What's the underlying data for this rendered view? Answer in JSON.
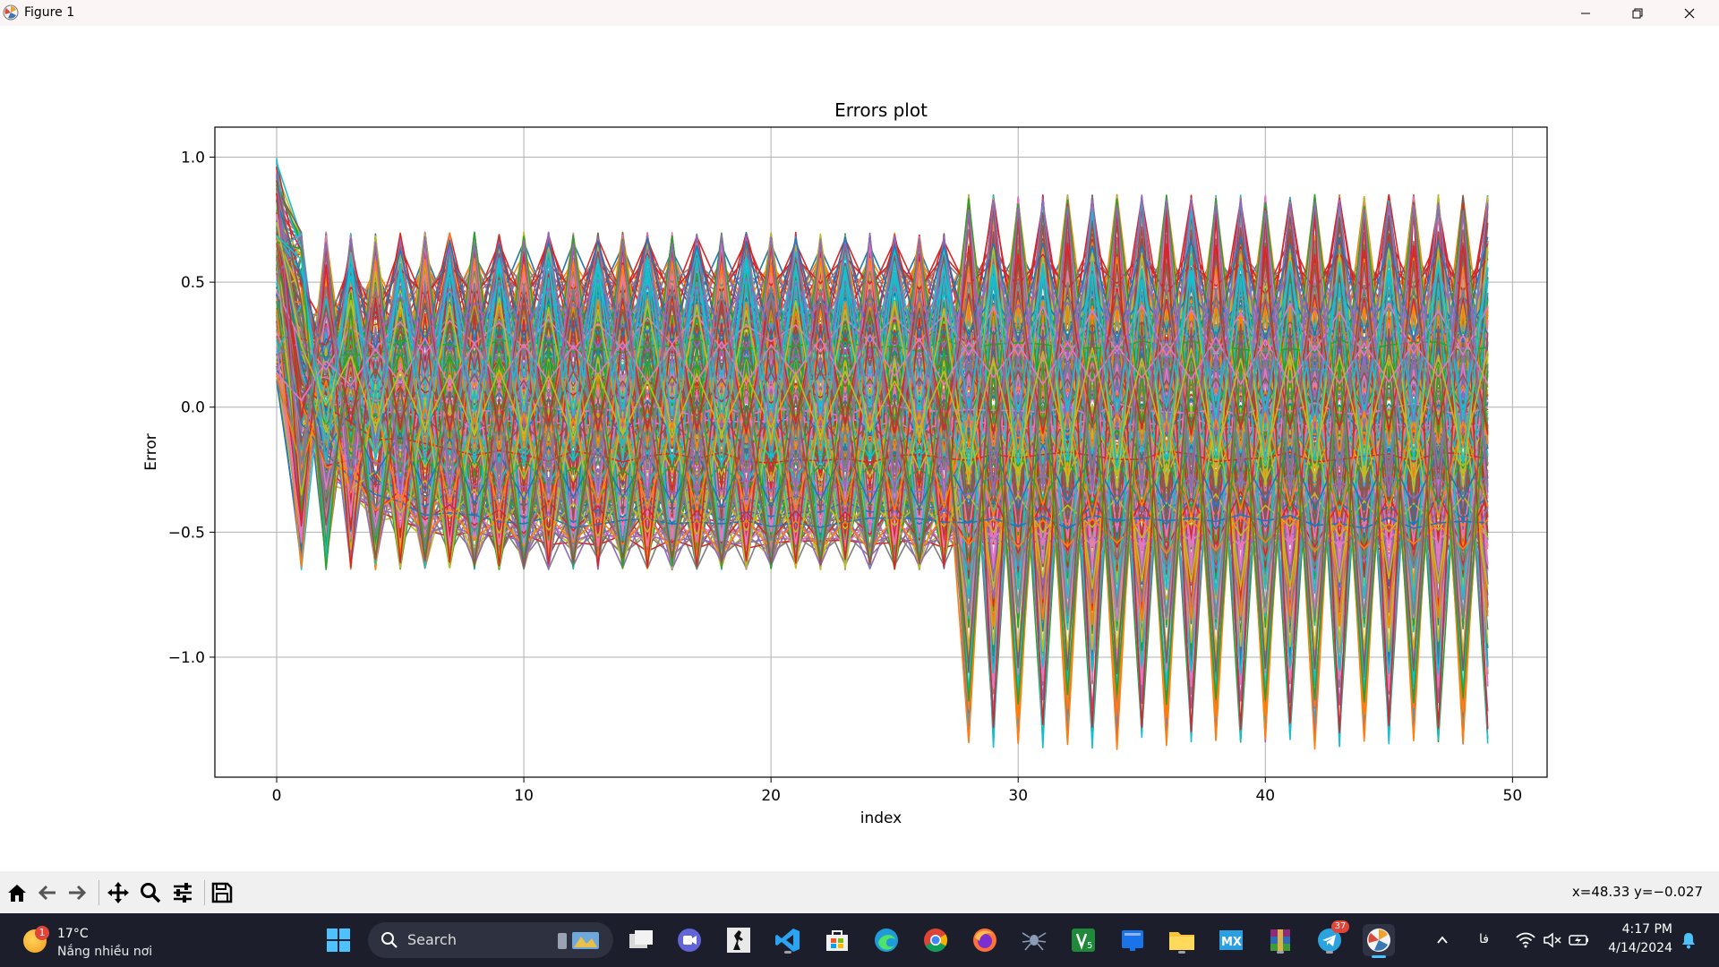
{
  "window": {
    "title": "Figure 1"
  },
  "chart_data": {
    "type": "line",
    "title": "Errors plot",
    "xlabel": "index",
    "ylabel": "Error",
    "xlim": [
      -2.5,
      51.4
    ],
    "ylim": [
      -1.48,
      1.12
    ],
    "x_ticks": [
      0,
      10,
      20,
      30,
      40,
      50
    ],
    "y_ticks": [
      1.0,
      0.5,
      0.0,
      -0.5,
      -1.0
    ],
    "x_tick_labels": [
      "0",
      "10",
      "20",
      "30",
      "40",
      "50"
    ],
    "y_tick_labels": [
      "1.0",
      "0.5",
      "0.0",
      "−0.5",
      "−1.0"
    ],
    "grid": true,
    "legend": "none",
    "x_range_of_data": [
      0,
      49
    ],
    "approx_envelope": {
      "start_max": 1.0,
      "upper_band_x_0_to_27": 0.7,
      "upper_band_x_28_to_49": 0.85,
      "lower_band_x_0_to_27": -0.65,
      "lower_band_x_28_to_49": -1.37
    },
    "series_palette": [
      "#1f77b4",
      "#ff7f0e",
      "#2ca02c",
      "#d62728",
      "#9467bd",
      "#8c564b",
      "#e377c2",
      "#7f7f7f",
      "#bcbd22",
      "#17becf"
    ]
  },
  "toolbar": {
    "home_icon": "home-icon",
    "back_icon": "back-arrow-icon",
    "forward_icon": "forward-arrow-icon",
    "pan_icon": "move-icon",
    "zoom_icon": "zoom-icon",
    "configure_icon": "sliders-icon",
    "save_icon": "save-icon",
    "coordinates": "x=48.33 y=−0.027"
  },
  "taskbar": {
    "weather": {
      "temperature": "17°C",
      "description": "Nắng nhiều nơi",
      "badge": "1"
    },
    "search_label": "Search",
    "telegram_badge": "37",
    "language": "فا",
    "time": "4:17 PM",
    "date": "4/14/2024"
  }
}
